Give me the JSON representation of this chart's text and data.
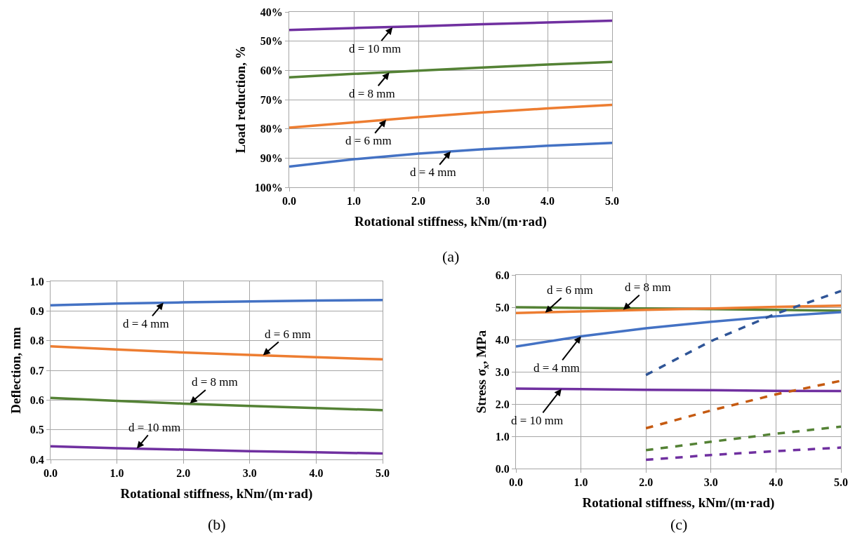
{
  "chart_data": [
    {
      "type": "line",
      "xlabel": "Rotational stiffness, kNm/(m·rad)",
      "ylabel": "Load reduction, %",
      "x": [
        0,
        1,
        2,
        3,
        4,
        5
      ],
      "series": [
        {
          "color": "#7030a0",
          "values": [
            46.2,
            45.5,
            44.9,
            44.2,
            43.6,
            43.0
          ]
        },
        {
          "color": "#548235",
          "values": [
            62.4,
            61.2,
            60.1,
            59.0,
            58.0,
            57.1
          ]
        },
        {
          "color": "#ed7d31",
          "values": [
            79.6,
            77.8,
            76.0,
            74.4,
            73.0,
            71.8
          ]
        },
        {
          "color": "#4472c4",
          "values": [
            92.9,
            90.4,
            88.5,
            87.0,
            85.8,
            84.8
          ]
        }
      ],
      "xlim": [
        0,
        5
      ],
      "xticks": [
        {
          "value": 0,
          "label": "0.0"
        },
        {
          "value": 1,
          "label": "1.0"
        },
        {
          "value": 2,
          "label": "2.0"
        },
        {
          "value": 3,
          "label": "3.0"
        },
        {
          "value": 4,
          "label": "4.0"
        },
        {
          "value": 5,
          "label": "5.0"
        }
      ],
      "ylim": [
        100,
        40
      ],
      "yticks": [
        {
          "value": 40,
          "label": "40%"
        },
        {
          "value": 50,
          "label": "50%"
        },
        {
          "value": 60,
          "label": "60%"
        },
        {
          "value": 70,
          "label": "70%"
        },
        {
          "value": 80,
          "label": "80%"
        },
        {
          "value": 90,
          "label": "90%"
        },
        {
          "value": 100,
          "label": "100%"
        }
      ],
      "grid": true,
      "line_style": "solid",
      "annotations": [
        {
          "text": "d = 10 mm",
          "x": 1.6,
          "y": 45.3
        },
        {
          "text": "d = 8 mm",
          "x": 1.55,
          "y": 60.7
        },
        {
          "text": "d = 6 mm",
          "x": 1.5,
          "y": 76.9
        },
        {
          "text": "d = 4 mm",
          "x": 2.5,
          "y": 87.7
        },
        "(a)"
      ]
    },
    {
      "type": "line",
      "xlabel": "Rotational stiffness, kNm/(m·rad)",
      "ylabel": "Deflection, mm",
      "x": [
        0,
        1,
        2,
        3,
        4,
        5
      ],
      "series": [
        {
          "color": "#4472c4",
          "values": [
            0.919,
            0.925,
            0.929,
            0.932,
            0.935,
            0.937
          ]
        },
        {
          "color": "#ed7d31",
          "values": [
            0.781,
            0.77,
            0.76,
            0.752,
            0.744,
            0.737
          ]
        },
        {
          "color": "#548235",
          "values": [
            0.607,
            0.597,
            0.588,
            0.58,
            0.573,
            0.566
          ]
        },
        {
          "color": "#7030a0",
          "values": [
            0.444,
            0.438,
            0.433,
            0.428,
            0.424,
            0.42
          ]
        }
      ],
      "xlim": [
        0,
        5
      ],
      "xticks": [
        {
          "value": 0,
          "label": "0.0"
        },
        {
          "value": 1,
          "label": "1.0"
        },
        {
          "value": 2,
          "label": "2.0"
        },
        {
          "value": 3,
          "label": "3.0"
        },
        {
          "value": 4,
          "label": "4.0"
        },
        {
          "value": 5,
          "label": "5.0"
        }
      ],
      "ylim": [
        0.4,
        1.0
      ],
      "yticks": [
        0.4,
        0.5,
        0.6,
        0.7,
        0.8,
        0.9,
        {
          "value": 1,
          "label": "1.0"
        }
      ],
      "grid": true,
      "line_style": "solid",
      "annotations": [
        {
          "text": "d = 4 mm",
          "x": 1.7,
          "y": 0.928
        },
        {
          "text": "d = 6 mm",
          "x": 3.2,
          "y": 0.751
        },
        {
          "text": "d = 8 mm",
          "x": 2.1,
          "y": 0.589
        },
        {
          "text": "d = 10 mm",
          "x": 1.3,
          "y": 0.437
        },
        "(b)"
      ]
    },
    {
      "type": "line",
      "xlabel": "Rotational stiffness, kNm/(m·rad)",
      "ylabel": "Stress σ$_{x}$, MPa",
      "x": [
        0,
        1,
        2,
        3,
        4,
        5
      ],
      "series": [
        {
          "color": "#548235",
          "values": [
            5.0,
            4.98,
            4.96,
            4.94,
            4.92,
            4.89
          ]
        },
        {
          "color": "#ed7d31",
          "values": [
            4.82,
            4.87,
            4.92,
            4.96,
            5.01,
            5.05
          ]
        },
        {
          "color": "#4472c4",
          "values": [
            3.78,
            4.1,
            4.35,
            4.55,
            4.72,
            4.85
          ]
        },
        {
          "color": "#7030a0",
          "values": [
            2.48,
            2.46,
            2.44,
            2.43,
            2.41,
            2.4
          ]
        },
        {
          "color": "#2f5597",
          "line_style": "dashed",
          "x": [
            2,
            3,
            4,
            5
          ],
          "values": [
            2.9,
            3.95,
            4.8,
            5.5
          ]
        },
        {
          "color": "#c55a11",
          "line_style": "dashed",
          "x": [
            2,
            3,
            4,
            5
          ],
          "values": [
            1.25,
            1.8,
            2.3,
            2.72
          ]
        },
        {
          "color": "#548235",
          "line_style": "dashed",
          "x": [
            2,
            3,
            4,
            5
          ],
          "values": [
            0.57,
            0.83,
            1.08,
            1.3
          ]
        },
        {
          "color": "#7030a0",
          "line_style": "dashed",
          "x": [
            2,
            3,
            4,
            5
          ],
          "values": [
            0.27,
            0.42,
            0.54,
            0.65
          ]
        }
      ],
      "xlim": [
        0,
        5
      ],
      "xticks": [
        {
          "value": 0,
          "label": "0.0"
        },
        {
          "value": 1,
          "label": "1.0"
        },
        {
          "value": 2,
          "label": "2.0"
        },
        {
          "value": 3,
          "label": "3.0"
        },
        {
          "value": 4,
          "label": "4.0"
        },
        {
          "value": 5,
          "label": "5.0"
        }
      ],
      "ylim": [
        0,
        6
      ],
      "yticks": [
        {
          "value": 0,
          "label": "0.0"
        },
        {
          "value": 1,
          "label": "1.0"
        },
        {
          "value": 2,
          "label": "2.0"
        },
        {
          "value": 3,
          "label": "3.0"
        },
        {
          "value": 4,
          "label": "4.0"
        },
        {
          "value": 5,
          "label": "5.0"
        },
        {
          "value": 6,
          "label": "6.0"
        }
      ],
      "grid": true,
      "line_style": "solid",
      "annotations": [
        {
          "text": "d = 6 mm",
          "x": 0.45,
          "y": 4.83
        },
        {
          "text": "d = 8 mm",
          "x": 1.65,
          "y": 4.92
        },
        {
          "text": "d = 4 mm",
          "x": 1.0,
          "y": 4.1
        },
        {
          "text": "d = 10 mm",
          "x": 0.7,
          "y": 2.47
        },
        "(c)"
      ]
    }
  ]
}
